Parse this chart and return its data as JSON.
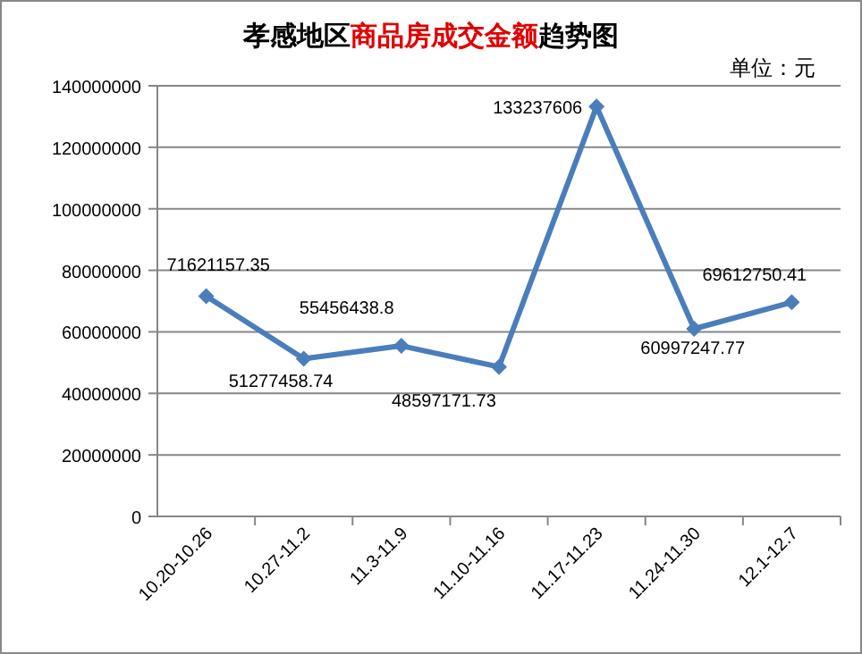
{
  "chart_data": {
    "type": "line",
    "title": "孝感地区**商品房成交金额**趋势图",
    "annotations": [
      "单位：元"
    ],
    "categories": [
      "10.20-10.26",
      "10.27-11.2",
      "11.3-11.9",
      "11.10-11.16",
      "11.17-11.23",
      "11.24-11.30",
      "12.1-12.7"
    ],
    "series": [
      {
        "color": "#4a7ebb",
        "values": [
          71621157.35,
          51277458.74,
          55456438.8,
          48597171.73,
          133237606,
          60997247.77,
          69612750.41
        ]
      }
    ],
    "ylim": [
      0,
      140000000
    ],
    "yticks": [
      0,
      20000000,
      40000000,
      60000000,
      80000000,
      100000000,
      120000000,
      140000000
    ],
    "grid": "y",
    "marker": "diamond",
    "data_labels": true
  }
}
